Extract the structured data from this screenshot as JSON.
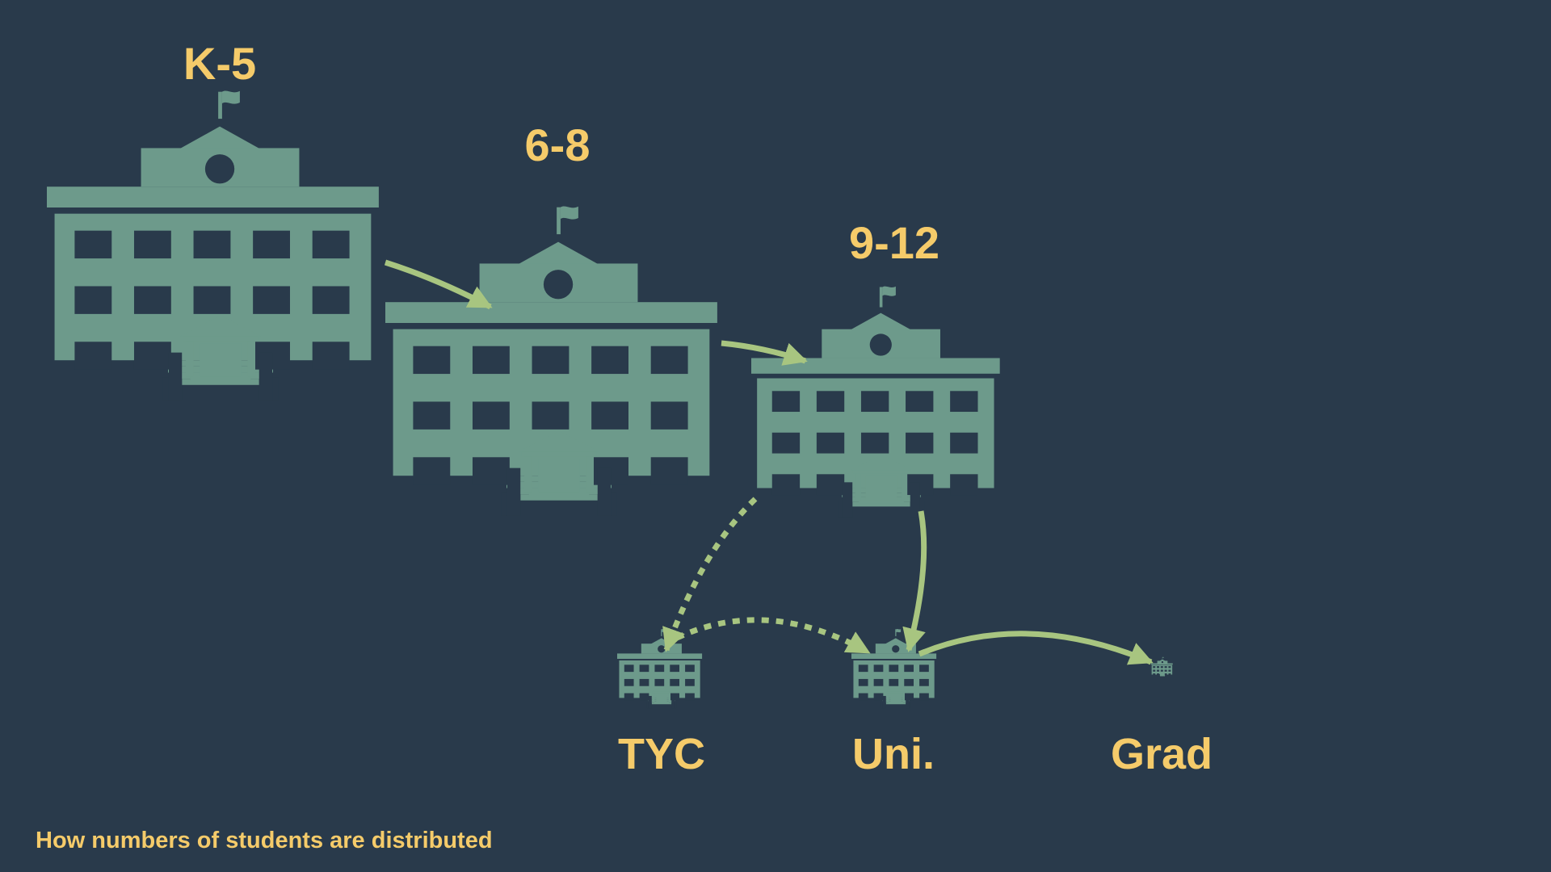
{
  "stages": [
    {
      "id": "k5",
      "label": "K-5"
    },
    {
      "id": "g68",
      "label": "6-8"
    },
    {
      "id": "g912",
      "label": "9-12"
    },
    {
      "id": "tyc",
      "label": "TYC"
    },
    {
      "id": "uni",
      "label": "Uni."
    },
    {
      "id": "grad",
      "label": "Grad"
    }
  ],
  "flows": [
    {
      "from": "K-5",
      "to": "6-8",
      "style": "solid"
    },
    {
      "from": "6-8",
      "to": "9-12",
      "style": "solid"
    },
    {
      "from": "9-12",
      "to": "TYC",
      "style": "dotted"
    },
    {
      "from": "9-12",
      "to": "Uni.",
      "style": "solid"
    },
    {
      "from": "TYC",
      "to": "Uni.",
      "style": "dotted"
    },
    {
      "from": "Uni.",
      "to": "Grad",
      "style": "solid"
    }
  ],
  "caption": "How numbers of students are distributed",
  "colors": {
    "background": "#293a4b",
    "building": "#6d9a8b",
    "arrow": "#a8c580",
    "label": "#f5cb6a"
  }
}
